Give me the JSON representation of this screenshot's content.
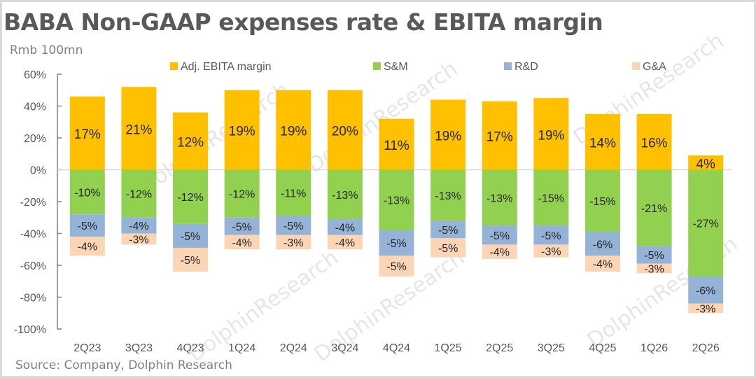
{
  "chart_data": {
    "type": "bar",
    "stacked": true,
    "title": "BABA Non-GAAP expenses rate & EBITA margin",
    "unit_label": "Rmb 100mn",
    "source": "Source: Company, Dolphin Research",
    "watermark": "DolphinResearch",
    "xlabel": "",
    "ylabel": "",
    "ylim": [
      -100,
      60
    ],
    "yticks": [
      60,
      40,
      20,
      0,
      -20,
      -40,
      -60,
      -80,
      -100
    ],
    "ytick_labels": [
      "60%",
      "40%",
      "20%",
      "0%",
      "-20%",
      "-40%",
      "-60%",
      "-80%",
      "-100%"
    ],
    "grid": false,
    "legend_position": "top",
    "categories": [
      "2Q23",
      "3Q23",
      "4Q23",
      "1Q24",
      "2Q24",
      "3Q24",
      "4Q24",
      "1Q25",
      "2Q25",
      "3Q25",
      "4Q25",
      "1Q26",
      "2Q26"
    ],
    "series": [
      {
        "name": "Adj. EBITA margin",
        "color": "#FFC000",
        "labels": [
          "17%",
          "21%",
          "12%",
          "19%",
          "19%",
          "20%",
          "11%",
          "19%",
          "17%",
          "19%",
          "14%",
          "16%",
          "4%"
        ],
        "values": [
          17,
          21,
          12,
          19,
          19,
          20,
          11,
          19,
          17,
          19,
          14,
          16,
          4
        ],
        "plotted_extent": [
          46,
          52,
          36,
          50,
          50,
          50,
          32,
          44,
          43,
          45,
          35,
          35,
          9
        ]
      },
      {
        "name": "S&M",
        "color": "#92D050",
        "labels": [
          "-10%",
          "-12%",
          "-12%",
          "-12%",
          "-11%",
          "-13%",
          "-13%",
          "-13%",
          "-13%",
          "-15%",
          "-15%",
          "-21%",
          "-27%"
        ],
        "values": [
          -10,
          -12,
          -12,
          -12,
          -11,
          -13,
          -13,
          -13,
          -13,
          -15,
          -15,
          -21,
          -27
        ],
        "plotted_extent": [
          -28,
          -30,
          -34,
          -30,
          -29,
          -31,
          -38,
          -32,
          -35,
          -35,
          -39,
          -48,
          -67
        ]
      },
      {
        "name": "R&D",
        "color": "#95B3D7",
        "labels": [
          "-5%",
          "-4%",
          "-5%",
          "-5%",
          "-5%",
          "-4%",
          "-5%",
          "-5%",
          "-5%",
          "-5%",
          "-6%",
          "-5%",
          "-6%"
        ],
        "values": [
          -5,
          -4,
          -5,
          -5,
          -5,
          -4,
          -5,
          -5,
          -5,
          -5,
          -6,
          -5,
          -6
        ],
        "plotted_extent": [
          -14,
          -10,
          -15,
          -11,
          -12,
          -10,
          -16,
          -11,
          -12,
          -12,
          -15,
          -11,
          -17
        ]
      },
      {
        "name": "G&A",
        "color": "#FCD5B5",
        "labels": [
          "-4%",
          "-3%",
          "-5%",
          "-4%",
          "-3%",
          "-4%",
          "-5%",
          "-5%",
          "-4%",
          "-3%",
          "-4%",
          "-3%",
          "-3%"
        ],
        "values": [
          -4,
          -3,
          -5,
          -4,
          -3,
          -4,
          -5,
          -5,
          -4,
          -3,
          -4,
          -3,
          -3
        ],
        "plotted_extent": [
          -12,
          -7,
          -15,
          -9,
          -9,
          -9,
          -13,
          -12,
          -9,
          -8,
          -10,
          -6,
          -6
        ]
      }
    ]
  }
}
